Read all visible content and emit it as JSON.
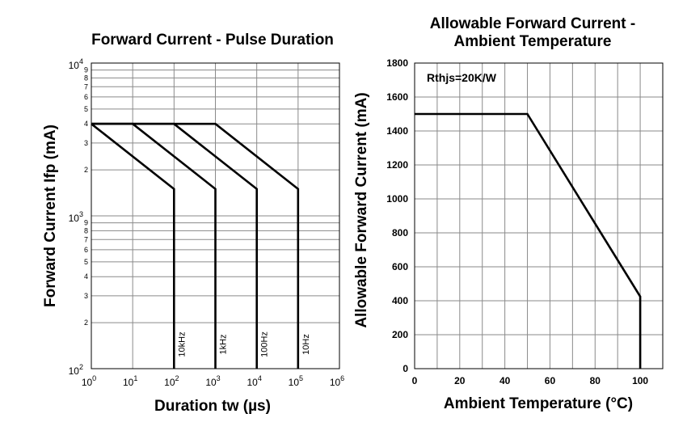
{
  "chart_data": [
    {
      "type": "line",
      "title": "Forward Current - Pulse Duration",
      "xlabel": "Duration tw (µs)",
      "ylabel": "Forward Current Ifp (mA)",
      "x_scale": "log",
      "y_scale": "log",
      "xlim": [
        1,
        1000000
      ],
      "ylim": [
        100,
        10000
      ],
      "x_ticks": [
        {
          "base": "10",
          "exp": "0"
        },
        {
          "base": "10",
          "exp": "1"
        },
        {
          "base": "10",
          "exp": "2"
        },
        {
          "base": "10",
          "exp": "3"
        },
        {
          "base": "10",
          "exp": "4"
        },
        {
          "base": "10",
          "exp": "5"
        },
        {
          "base": "10",
          "exp": "6"
        }
      ],
      "y_ticks": [
        {
          "base": "10",
          "exp": "2"
        },
        {
          "base": "10",
          "exp": "3"
        },
        {
          "base": "10",
          "exp": "4"
        }
      ],
      "y_minor_labels": [
        "2",
        "3",
        "4",
        "5",
        "6",
        "7",
        "8",
        "9"
      ],
      "grid": true,
      "series": [
        {
          "name": "10kHz",
          "x": [
            1,
            100,
            100
          ],
          "y": [
            4000,
            1500,
            100
          ]
        },
        {
          "name": "1kHz",
          "x": [
            1,
            10,
            1000,
            1000
          ],
          "y": [
            4000,
            4000,
            1500,
            100
          ]
        },
        {
          "name": "100Hz",
          "x": [
            1,
            100,
            10000,
            10000
          ],
          "y": [
            4000,
            4000,
            1500,
            100
          ]
        },
        {
          "name": "10Hz",
          "x": [
            1,
            1000,
            100000,
            100000
          ],
          "y": [
            4000,
            4000,
            1500,
            100
          ]
        }
      ]
    },
    {
      "type": "line",
      "title": "Allowable Forward Current -",
      "subtitle": "Ambient Temperature",
      "xlabel": "Ambient Temperature (°C)",
      "ylabel": "Allowable Forward Current (mA)",
      "xlim": [
        0,
        110
      ],
      "ylim": [
        0,
        1800
      ],
      "x_ticks": [
        0,
        20,
        40,
        60,
        80,
        100
      ],
      "y_ticks": [
        0,
        200,
        400,
        600,
        800,
        1000,
        1200,
        1400,
        1600,
        1800
      ],
      "annotation": "Rthjs=20K/W",
      "grid": true,
      "series": [
        {
          "x": [
            0,
            50,
            100,
            100
          ],
          "y": [
            1500,
            1500,
            425,
            0
          ]
        }
      ]
    }
  ]
}
